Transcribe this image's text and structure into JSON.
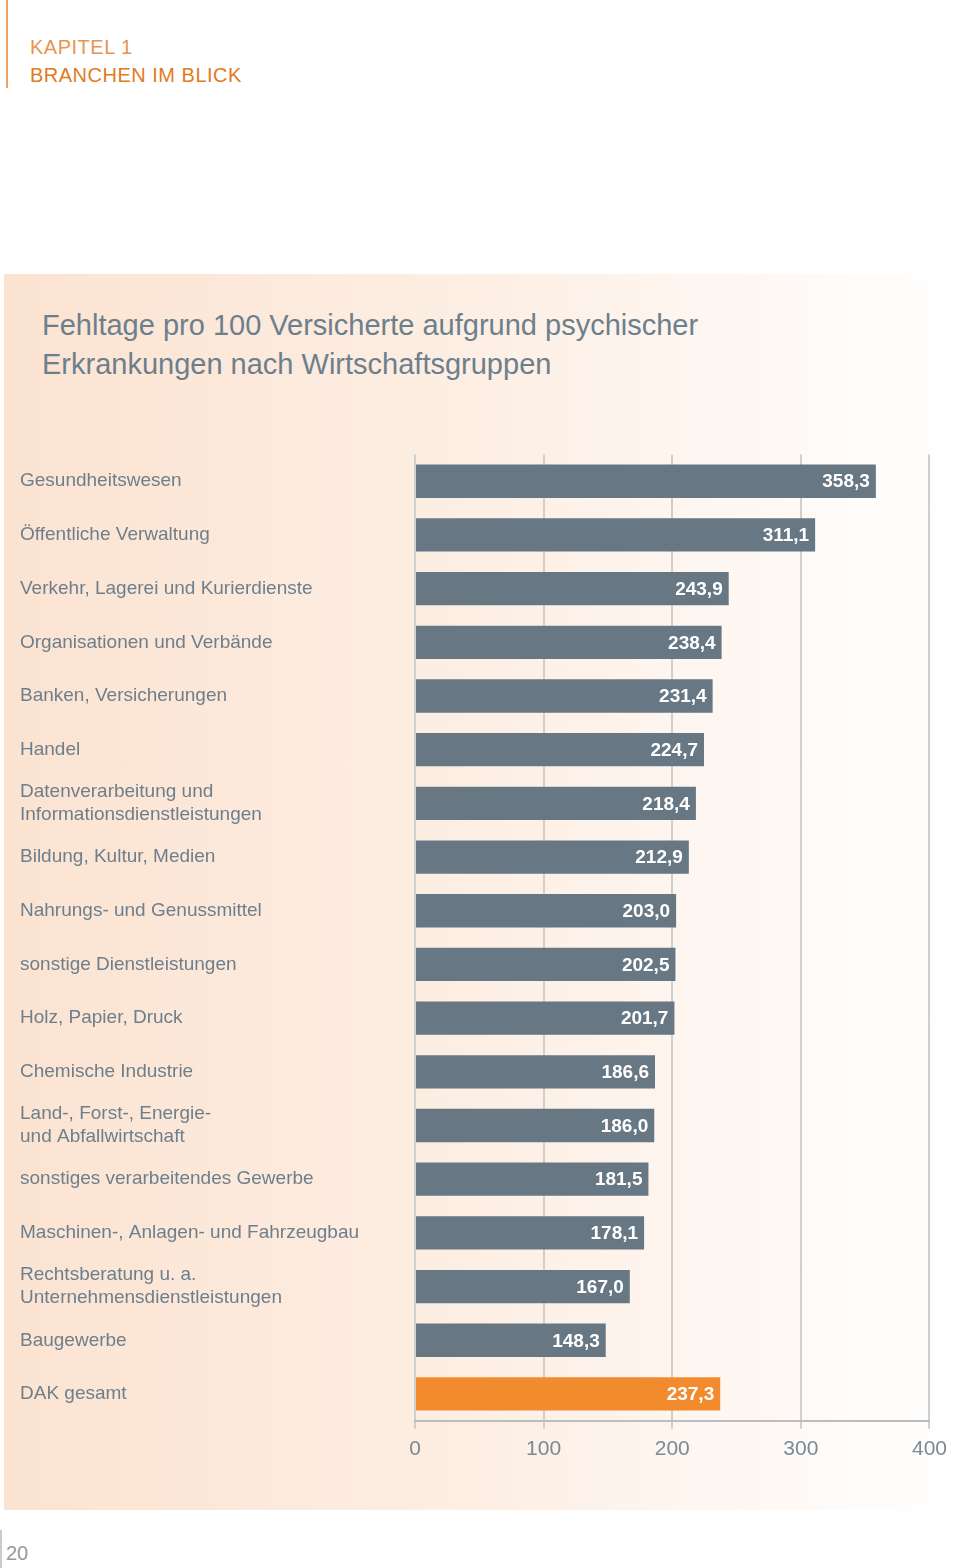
{
  "page": {
    "chapter": "KAPITEL 1",
    "section": "BRANCHEN IM BLICK",
    "page_number": "20"
  },
  "chart_data": {
    "type": "bar",
    "orientation": "horizontal",
    "title": "Fehltage pro 100 Versicherte aufgrund psychischer Erkrankungen nach Wirtschaftsgruppen",
    "categories": [
      "Gesundheitswesen",
      "Öffentliche Verwaltung",
      "Verkehr, Lagerei und Kurierdienste",
      "Organisationen und Verbände",
      "Banken, Versicherungen",
      "Handel",
      "Datenverarbeitung und Informationsdienstleistungen",
      "Bildung, Kultur, Medien",
      "Nahrungs- und Genussmittel",
      "sonstige Dienstleistungen",
      "Holz, Papier, Druck",
      "Chemische Industrie",
      "Land-, Forst-, Energie- und Abfallwirtschaft",
      "sonstiges verarbeitendes Gewerbe",
      "Maschinen-, Anlagen- und Fahrzeugbau",
      "Rechtsberatung u. a. Unternehmensdienstleistungen",
      "Baugewerbe",
      "DAK gesamt"
    ],
    "values": [
      358.3,
      311.1,
      243.9,
      238.4,
      231.4,
      224.7,
      218.4,
      212.9,
      203.0,
      202.5,
      201.7,
      186.6,
      186.0,
      181.5,
      178.1,
      167.0,
      148.3,
      237.3
    ],
    "value_labels": [
      "358,3",
      "311,1",
      "243,9",
      "238,4",
      "231,4",
      "224,7",
      "218,4",
      "212,9",
      "203,0",
      "202,5",
      "201,7",
      "186,6",
      "186,0",
      "181,5",
      "178,1",
      "167,0",
      "148,3",
      "237,3"
    ],
    "colors": [
      "#677784",
      "#677784",
      "#677784",
      "#677784",
      "#677784",
      "#677784",
      "#677784",
      "#677784",
      "#677784",
      "#677784",
      "#677784",
      "#677784",
      "#677784",
      "#677784",
      "#677784",
      "#677784",
      "#677784",
      "#f28a2e"
    ],
    "xlim": [
      0,
      400
    ],
    "xticks": [
      0,
      100,
      200,
      300,
      400
    ],
    "grid": true,
    "data_labels": true
  }
}
